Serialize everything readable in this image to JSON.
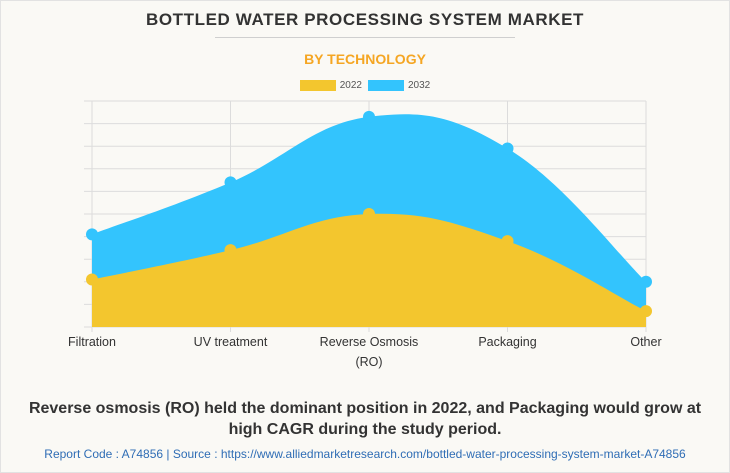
{
  "title": "BOTTLED WATER PROCESSING SYSTEM MARKET",
  "subtitle": "BY TECHNOLOGY",
  "caption": "Reverse osmosis (RO) held the dominant position in 2022, and Packaging would grow at high CAGR during the study period.",
  "source_line": "Report Code : A74856  |  Source : https://www.alliedmarketresearch.com/bottled-water-processing-system-market-A74856",
  "colors": {
    "2022": "#f3c62e",
    "2032": "#33c4fd"
  },
  "chart_data": {
    "type": "area",
    "title": "BOTTLED WATER PROCESSING SYSTEM MARKET",
    "subtitle": "BY TECHNOLOGY",
    "categories": [
      "Filtration",
      "UV treatment",
      "Reverse Osmosis (RO)",
      "Packaging",
      "Other"
    ],
    "category_label_lines": [
      [
        "Filtration"
      ],
      [
        "UV treatment"
      ],
      [
        "Reverse Osmosis",
        "(RO)"
      ],
      [
        "Packaging"
      ],
      [
        "Other"
      ]
    ],
    "series": [
      {
        "name": "2032",
        "values": [
          4.1,
          6.4,
          9.3,
          7.9,
          2.0
        ]
      },
      {
        "name": "2022",
        "values": [
          2.1,
          3.4,
          5.0,
          3.8,
          0.7
        ]
      }
    ],
    "ylim": [
      0,
      10
    ],
    "y_units_note": "relative gridline units (no y-axis labels shown)",
    "xlabel": "",
    "ylabel": "",
    "grid": true,
    "legend": "top-center",
    "smooth": true
  }
}
